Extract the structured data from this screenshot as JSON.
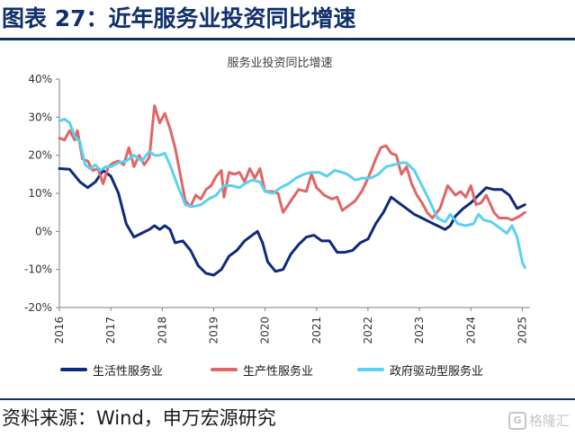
{
  "header": {
    "title": "图表 27：近年服务业投资同比增速"
  },
  "footer": {
    "source": "资料来源：Wind，申万宏源研究",
    "watermark": "格隆汇",
    "watermark_logo": "G"
  },
  "chart_data": {
    "type": "line",
    "title": "服务业投资同比增速",
    "xlabel": "",
    "ylabel": "",
    "xlim": [
      2016,
      2025.15
    ],
    "ylim": [
      -20,
      40
    ],
    "yticks": [
      -20,
      -10,
      0,
      10,
      20,
      30,
      40
    ],
    "ytick_labels": [
      "-20%",
      "-10%",
      "0%",
      "10%",
      "20%",
      "30%",
      "40%"
    ],
    "xticks": [
      2016,
      2017,
      2018,
      2019,
      2020,
      2021,
      2022,
      2023,
      2024,
      2025
    ],
    "xtick_labels": [
      "2016",
      "2017",
      "2018",
      "2019",
      "2020",
      "2021",
      "2022",
      "2023",
      "2024",
      "2025"
    ],
    "grid": false,
    "legend_position": "bottom",
    "series": [
      {
        "name": "生活性服务业",
        "color": "#0d2b7a",
        "points": [
          [
            2016.0,
            16.5
          ],
          [
            2016.2,
            16.3
          ],
          [
            2016.4,
            13.0
          ],
          [
            2016.55,
            11.5
          ],
          [
            2016.7,
            13.0
          ],
          [
            2016.85,
            16.0
          ],
          [
            2017.0,
            14.5
          ],
          [
            2017.15,
            10.0
          ],
          [
            2017.3,
            2.0
          ],
          [
            2017.45,
            -1.5
          ],
          [
            2017.6,
            -0.5
          ],
          [
            2017.75,
            0.5
          ],
          [
            2017.85,
            1.5
          ],
          [
            2017.95,
            0.5
          ],
          [
            2018.05,
            1.5
          ],
          [
            2018.15,
            0.5
          ],
          [
            2018.25,
            -3.0
          ],
          [
            2018.4,
            -2.5
          ],
          [
            2018.55,
            -5.0
          ],
          [
            2018.7,
            -9.0
          ],
          [
            2018.85,
            -11.0
          ],
          [
            2019.0,
            -11.5
          ],
          [
            2019.15,
            -10.0
          ],
          [
            2019.3,
            -6.5
          ],
          [
            2019.45,
            -5.0
          ],
          [
            2019.6,
            -2.5
          ],
          [
            2019.75,
            -1.0
          ],
          [
            2019.85,
            0.0
          ],
          [
            2019.95,
            -3.0
          ],
          [
            2020.05,
            -8.0
          ],
          [
            2020.2,
            -10.5
          ],
          [
            2020.35,
            -10.0
          ],
          [
            2020.5,
            -6.0
          ],
          [
            2020.65,
            -3.5
          ],
          [
            2020.8,
            -1.5
          ],
          [
            2020.95,
            -1.0
          ],
          [
            2021.1,
            -2.5
          ],
          [
            2021.25,
            -2.5
          ],
          [
            2021.4,
            -5.5
          ],
          [
            2021.55,
            -5.5
          ],
          [
            2021.7,
            -5.0
          ],
          [
            2021.85,
            -3.0
          ],
          [
            2022.0,
            -2.0
          ],
          [
            2022.15,
            2.0
          ],
          [
            2022.3,
            5.0
          ],
          [
            2022.45,
            9.0
          ],
          [
            2022.6,
            7.5
          ],
          [
            2022.75,
            6.0
          ],
          [
            2022.9,
            4.5
          ],
          [
            2023.05,
            3.5
          ],
          [
            2023.2,
            2.5
          ],
          [
            2023.35,
            1.5
          ],
          [
            2023.5,
            0.5
          ],
          [
            2023.6,
            1.5
          ],
          [
            2023.7,
            4.0
          ],
          [
            2023.85,
            6.0
          ],
          [
            2024.0,
            7.5
          ],
          [
            2024.15,
            9.5
          ],
          [
            2024.3,
            11.5
          ],
          [
            2024.45,
            11.0
          ],
          [
            2024.6,
            11.0
          ],
          [
            2024.75,
            9.5
          ],
          [
            2024.9,
            6.0
          ],
          [
            2025.05,
            7.0
          ]
        ]
      },
      {
        "name": "生产性服务业",
        "color": "#e06666",
        "points": [
          [
            2016.0,
            24.5
          ],
          [
            2016.1,
            24.0
          ],
          [
            2016.2,
            26.5
          ],
          [
            2016.3,
            24.0
          ],
          [
            2016.35,
            26.5
          ],
          [
            2016.45,
            19.0
          ],
          [
            2016.55,
            18.5
          ],
          [
            2016.65,
            16.0
          ],
          [
            2016.75,
            16.5
          ],
          [
            2016.85,
            12.5
          ],
          [
            2016.95,
            17.0
          ],
          [
            2017.05,
            18.0
          ],
          [
            2017.15,
            18.5
          ],
          [
            2017.25,
            17.5
          ],
          [
            2017.35,
            22.0
          ],
          [
            2017.45,
            17.0
          ],
          [
            2017.55,
            20.0
          ],
          [
            2017.65,
            17.5
          ],
          [
            2017.75,
            19.5
          ],
          [
            2017.85,
            33.0
          ],
          [
            2017.95,
            28.5
          ],
          [
            2018.05,
            31.0
          ],
          [
            2018.15,
            27.0
          ],
          [
            2018.25,
            22.0
          ],
          [
            2018.35,
            15.0
          ],
          [
            2018.45,
            8.0
          ],
          [
            2018.55,
            6.5
          ],
          [
            2018.65,
            9.5
          ],
          [
            2018.75,
            8.5
          ],
          [
            2018.85,
            11.0
          ],
          [
            2018.95,
            12.0
          ],
          [
            2019.05,
            14.5
          ],
          [
            2019.15,
            16.0
          ],
          [
            2019.2,
            9.0
          ],
          [
            2019.3,
            15.5
          ],
          [
            2019.4,
            15.0
          ],
          [
            2019.5,
            15.5
          ],
          [
            2019.6,
            13.0
          ],
          [
            2019.7,
            16.5
          ],
          [
            2019.8,
            14.0
          ],
          [
            2019.9,
            16.5
          ],
          [
            2020.0,
            10.5
          ],
          [
            2020.15,
            10.5
          ],
          [
            2020.25,
            10.0
          ],
          [
            2020.35,
            5.0
          ],
          [
            2020.5,
            8.0
          ],
          [
            2020.65,
            11.0
          ],
          [
            2020.8,
            10.5
          ],
          [
            2020.9,
            15.0
          ],
          [
            2021.0,
            11.5
          ],
          [
            2021.15,
            9.5
          ],
          [
            2021.3,
            8.5
          ],
          [
            2021.4,
            9.0
          ],
          [
            2021.5,
            5.5
          ],
          [
            2021.6,
            6.5
          ],
          [
            2021.75,
            8.0
          ],
          [
            2021.9,
            11.0
          ],
          [
            2022.05,
            15.5
          ],
          [
            2022.15,
            19.0
          ],
          [
            2022.25,
            22.0
          ],
          [
            2022.35,
            22.5
          ],
          [
            2022.45,
            20.5
          ],
          [
            2022.55,
            20.0
          ],
          [
            2022.65,
            15.0
          ],
          [
            2022.75,
            17.0
          ],
          [
            2022.85,
            12.5
          ],
          [
            2022.95,
            9.5
          ],
          [
            2023.05,
            7.5
          ],
          [
            2023.15,
            5.0
          ],
          [
            2023.25,
            3.5
          ],
          [
            2023.4,
            6.0
          ],
          [
            2023.55,
            12.0
          ],
          [
            2023.7,
            9.5
          ],
          [
            2023.8,
            10.5
          ],
          [
            2023.9,
            9.0
          ],
          [
            2024.0,
            12.0
          ],
          [
            2024.1,
            7.0
          ],
          [
            2024.2,
            7.5
          ],
          [
            2024.3,
            9.5
          ],
          [
            2024.45,
            5.0
          ],
          [
            2024.55,
            3.5
          ],
          [
            2024.7,
            3.5
          ],
          [
            2024.8,
            3.0
          ],
          [
            2024.95,
            4.0
          ],
          [
            2025.05,
            5.0
          ]
        ]
      },
      {
        "name": "政府驱动型服务业",
        "color": "#5ad1f0",
        "points": [
          [
            2016.0,
            29.0
          ],
          [
            2016.1,
            29.5
          ],
          [
            2016.2,
            28.5
          ],
          [
            2016.3,
            25.0
          ],
          [
            2016.4,
            23.5
          ],
          [
            2016.5,
            17.5
          ],
          [
            2016.6,
            16.5
          ],
          [
            2016.7,
            17.5
          ],
          [
            2016.8,
            16.0
          ],
          [
            2016.9,
            17.0
          ],
          [
            2017.0,
            17.0
          ],
          [
            2017.15,
            18.0
          ],
          [
            2017.3,
            18.5
          ],
          [
            2017.45,
            20.0
          ],
          [
            2017.6,
            18.5
          ],
          [
            2017.75,
            21.0
          ],
          [
            2017.85,
            20.0
          ],
          [
            2017.95,
            20.0
          ],
          [
            2018.05,
            20.5
          ],
          [
            2018.15,
            17.5
          ],
          [
            2018.3,
            12.0
          ],
          [
            2018.45,
            7.0
          ],
          [
            2018.6,
            6.5
          ],
          [
            2018.75,
            7.0
          ],
          [
            2018.9,
            8.5
          ],
          [
            2019.05,
            9.5
          ],
          [
            2019.2,
            12.0
          ],
          [
            2019.35,
            12.0
          ],
          [
            2019.5,
            11.5
          ],
          [
            2019.6,
            12.5
          ],
          [
            2019.75,
            13.5
          ],
          [
            2019.9,
            13.0
          ],
          [
            2020.0,
            10.5
          ],
          [
            2020.15,
            10.0
          ],
          [
            2020.3,
            11.5
          ],
          [
            2020.45,
            12.5
          ],
          [
            2020.6,
            14.0
          ],
          [
            2020.75,
            15.0
          ],
          [
            2020.9,
            15.5
          ],
          [
            2021.05,
            15.5
          ],
          [
            2021.2,
            14.5
          ],
          [
            2021.35,
            16.0
          ],
          [
            2021.5,
            15.5
          ],
          [
            2021.6,
            15.0
          ],
          [
            2021.75,
            13.5
          ],
          [
            2021.9,
            14.0
          ],
          [
            2022.05,
            14.0
          ],
          [
            2022.2,
            15.0
          ],
          [
            2022.35,
            17.0
          ],
          [
            2022.5,
            17.5
          ],
          [
            2022.65,
            18.0
          ],
          [
            2022.75,
            18.0
          ],
          [
            2022.9,
            16.0
          ],
          [
            2023.05,
            12.0
          ],
          [
            2023.2,
            8.0
          ],
          [
            2023.35,
            3.5
          ],
          [
            2023.5,
            2.5
          ],
          [
            2023.6,
            4.5
          ],
          [
            2023.75,
            2.0
          ],
          [
            2023.9,
            1.5
          ],
          [
            2024.05,
            2.0
          ],
          [
            2024.15,
            4.5
          ],
          [
            2024.25,
            3.0
          ],
          [
            2024.4,
            2.5
          ],
          [
            2024.55,
            1.0
          ],
          [
            2024.7,
            -0.5
          ],
          [
            2024.8,
            1.5
          ],
          [
            2024.9,
            -1.5
          ],
          [
            2025.0,
            -8.0
          ],
          [
            2025.05,
            -9.5
          ]
        ]
      }
    ]
  }
}
